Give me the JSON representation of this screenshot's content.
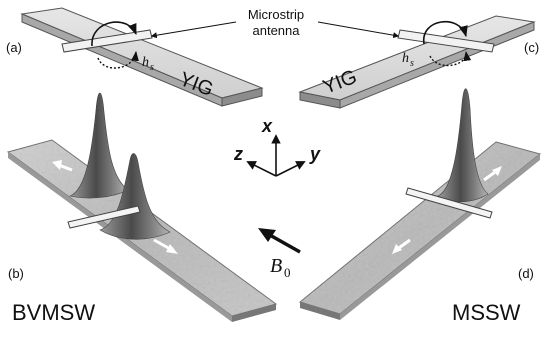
{
  "labels": {
    "antenna_line1": "Microstrip",
    "antenna_line2": "antenna",
    "panel_a": "(a)",
    "panel_b": "(b)",
    "panel_c": "(c)",
    "panel_d": "(d)",
    "yig_left": "YIG",
    "yig_right": "YIG",
    "h_left": "h",
    "h_left_sub": "s",
    "h_right": "h",
    "h_right_sub": "s",
    "axis_x": "x",
    "axis_y": "y",
    "axis_z": "z",
    "field": "B",
    "field_sub": "0",
    "mode_left": "BVMSW",
    "mode_right": "MSSW"
  },
  "colors": {
    "slab_top": "#d9d9d9",
    "slab_side": "#9a9a9a",
    "film_surface": "#bcbcbc",
    "film_edge": "#7a7a7a",
    "peak_dark": "#555555",
    "peak_light": "#c8c8c8",
    "arrow_white": "#ffffff",
    "ink": "#111111"
  }
}
